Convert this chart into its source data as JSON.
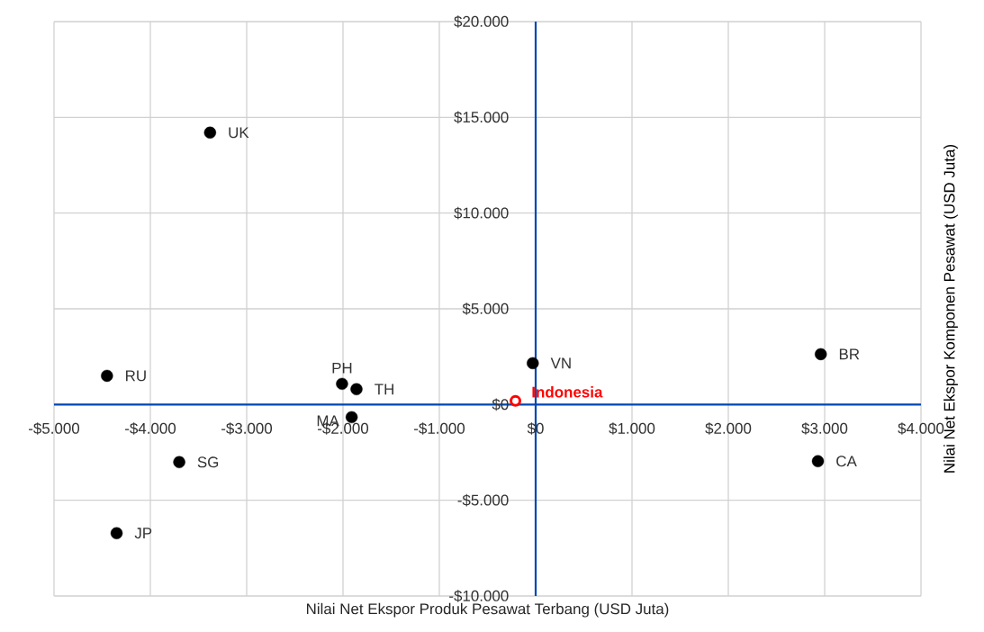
{
  "chart_data": {
    "type": "scatter",
    "xlabel": "Nilai Net Ekspor Produk Pesawat Terbang (USD Juta)",
    "ylabel": "Nilai Net Ekspor Komponen Pesawat  (USD Juta)",
    "xlim": [
      -5000,
      4000
    ],
    "ylim": [
      -10000,
      20000
    ],
    "xticks": [
      {
        "value": -5000,
        "label": "-$5.000"
      },
      {
        "value": -4000,
        "label": "-$4.000"
      },
      {
        "value": -3000,
        "label": "-$3.000"
      },
      {
        "value": -2000,
        "label": "-$2.000"
      },
      {
        "value": -1000,
        "label": "-$1.000"
      },
      {
        "value": 0,
        "label": "$0"
      },
      {
        "value": 1000,
        "label": "$1.000"
      },
      {
        "value": 2000,
        "label": "$2.000"
      },
      {
        "value": 3000,
        "label": "$3.000"
      },
      {
        "value": 4000,
        "label": "$4.000"
      }
    ],
    "yticks": [
      {
        "value": -10000,
        "label": "-$10.000"
      },
      {
        "value": -5000,
        "label": "-$5.000"
      },
      {
        "value": 0,
        "label": "$0"
      },
      {
        "value": 5000,
        "label": "$5.000"
      },
      {
        "value": 10000,
        "label": "$10.000"
      },
      {
        "value": 15000,
        "label": "$15.000"
      },
      {
        "value": 20000,
        "label": "$20.000"
      }
    ],
    "grid": true,
    "marker": "circle",
    "series": [
      {
        "name": "UK",
        "color": "#000000",
        "x": [
          -3380
        ],
        "values": [
          14200
        ]
      },
      {
        "name": "RU",
        "color": "#000000",
        "x": [
          -4450
        ],
        "values": [
          1500
        ]
      },
      {
        "name": "PH",
        "color": "#000000",
        "x": [
          -2010
        ],
        "values": [
          1080
        ]
      },
      {
        "name": "TH",
        "color": "#000000",
        "x": [
          -1860
        ],
        "values": [
          800
        ]
      },
      {
        "name": "MA",
        "color": "#000000",
        "x": [
          -1910
        ],
        "values": [
          -660
        ]
      },
      {
        "name": "VN",
        "color": "#000000",
        "x": [
          -30
        ],
        "values": [
          2160
        ]
      },
      {
        "name": "**Indonesia**",
        "color": "#ff0000",
        "x": [
          -210
        ],
        "values": [
          190
        ]
      },
      {
        "name": "BR",
        "color": "#000000",
        "x": [
          2960
        ],
        "values": [
          2630
        ]
      },
      {
        "name": "CA",
        "color": "#000000",
        "x": [
          2930
        ],
        "values": [
          -2960
        ]
      },
      {
        "name": "SG",
        "color": "#000000",
        "x": [
          -3700
        ],
        "values": [
          -3010
        ]
      },
      {
        "name": "JP",
        "color": "#000000",
        "x": [
          -4350
        ],
        "values": [
          -6720
        ]
      }
    ]
  }
}
